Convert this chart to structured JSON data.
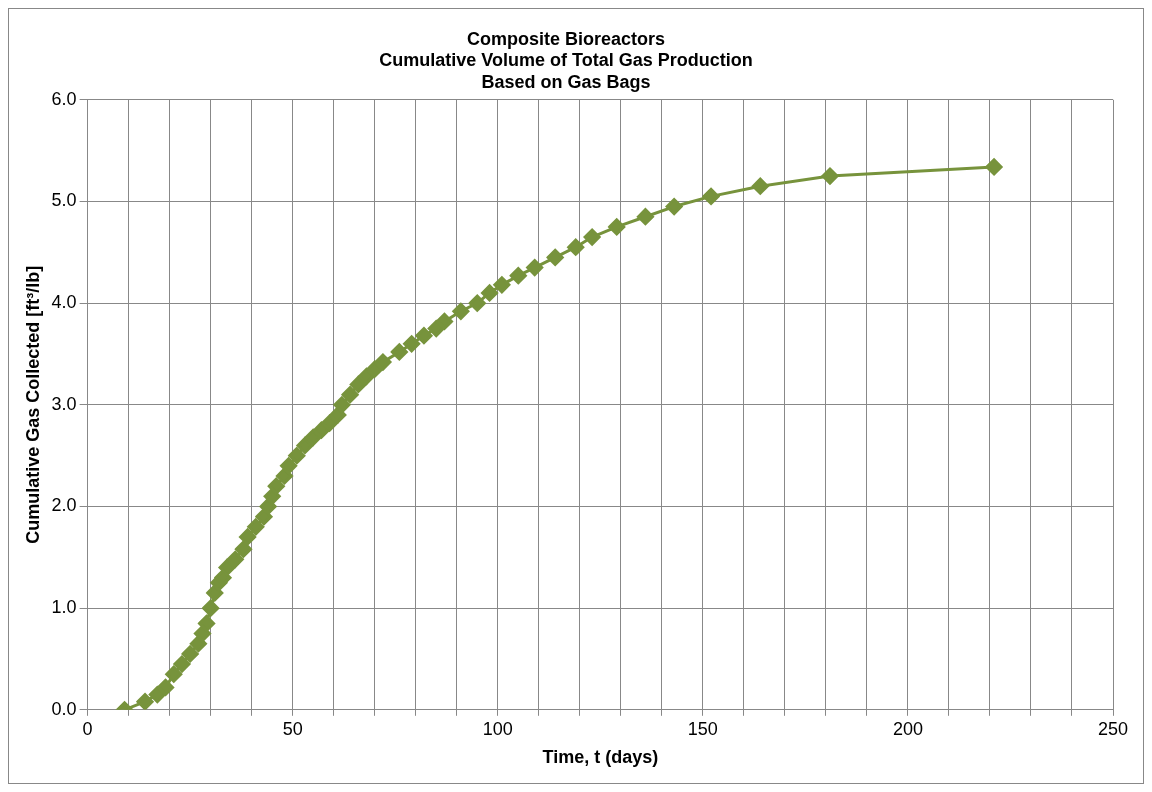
{
  "chart_data": {
    "type": "line",
    "title": "Composite Bioreactors\nCumulative Volume of Total Gas Production\nBased on Gas Bags",
    "xlabel": "Time, t (days)",
    "ylabel": "Cumulative Gas Collected [ft³/lb]",
    "x": [
      9,
      14,
      17,
      19,
      21,
      23,
      25,
      27,
      28,
      29,
      30,
      31,
      32,
      33,
      34,
      36,
      38,
      39,
      41,
      43,
      44,
      45,
      46,
      48,
      49,
      51,
      53,
      55,
      57,
      59,
      61,
      62,
      64,
      66,
      68,
      70,
      72,
      76,
      79,
      82,
      85,
      87,
      91,
      95,
      98,
      101,
      105,
      109,
      114,
      119,
      123,
      129,
      136,
      143,
      152,
      164,
      181,
      221
    ],
    "series": [
      {
        "color": "#77933c",
        "values": [
          0,
          0.08,
          0.15,
          0.22,
          0.35,
          0.45,
          0.55,
          0.65,
          0.75,
          0.85,
          1.0,
          1.15,
          1.25,
          1.3,
          1.4,
          1.48,
          1.58,
          1.7,
          1.8,
          1.9,
          2.0,
          2.1,
          2.2,
          2.3,
          2.4,
          2.5,
          2.6,
          2.68,
          2.75,
          2.82,
          2.9,
          3.0,
          3.1,
          3.2,
          3.28,
          3.35,
          3.42,
          3.52,
          3.6,
          3.68,
          3.75,
          3.82,
          3.92,
          4.0,
          4.1,
          4.18,
          4.27,
          4.35,
          4.45,
          4.55,
          4.65,
          4.75,
          4.85,
          4.95,
          5.05,
          5.15,
          5.25,
          5.34
        ]
      }
    ],
    "xlim": [
      0,
      250
    ],
    "xticks": [
      0,
      {
        "value": 10,
        "label": null
      },
      {
        "value": 20,
        "label": null
      },
      {
        "value": 30,
        "label": null
      },
      {
        "value": 40,
        "label": null
      },
      50,
      {
        "value": 60,
        "label": null
      },
      {
        "value": 70,
        "label": null
      },
      {
        "value": 80,
        "label": null
      },
      {
        "value": 90,
        "label": null
      },
      100,
      {
        "value": 110,
        "label": null
      },
      {
        "value": 120,
        "label": null
      },
      {
        "value": 130,
        "label": null
      },
      {
        "value": 140,
        "label": null
      },
      150,
      {
        "value": 160,
        "label": null
      },
      {
        "value": 170,
        "label": null
      },
      {
        "value": 180,
        "label": null
      },
      {
        "value": 190,
        "label": null
      },
      200,
      {
        "value": 210,
        "label": null
      },
      {
        "value": 220,
        "label": null
      },
      {
        "value": 230,
        "label": null
      },
      {
        "value": 240,
        "label": null
      },
      250
    ],
    "ylim": [
      0,
      6
    ],
    "yticks": [
      {
        "value": 0,
        "label": "0.0"
      },
      {
        "value": 1,
        "label": "1.0"
      },
      {
        "value": 2,
        "label": "2.0"
      },
      {
        "value": 3,
        "label": "3.0"
      },
      {
        "value": 4,
        "label": "4.0"
      },
      {
        "value": 5,
        "label": "5.0"
      },
      {
        "value": 6,
        "label": "6.0"
      }
    ],
    "grid": true,
    "legend": false,
    "marker": "diamond",
    "line_style": "solid"
  }
}
